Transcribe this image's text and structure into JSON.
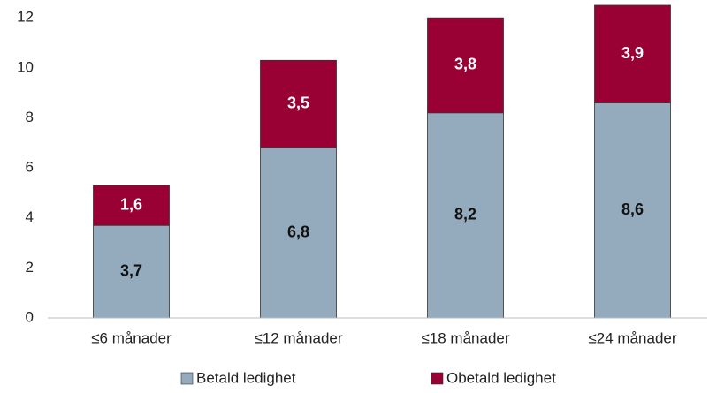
{
  "chart_data": {
    "type": "stacked_bar",
    "categories": [
      "≤6 månader",
      "≤12 månader",
      "≤18 månader",
      "≤24 månader"
    ],
    "series": [
      {
        "name": "Betald ledighet",
        "color": "#94abbd",
        "values": [
          3.7,
          6.8,
          8.2,
          8.6
        ],
        "value_labels": [
          "3,7",
          "6,8",
          "8,2",
          "8,6"
        ]
      },
      {
        "name": "Obetald ledighet",
        "color": "#990033",
        "values": [
          1.6,
          3.5,
          3.8,
          3.9
        ],
        "value_labels": [
          "1,6",
          "3,5",
          "3,8",
          "3,9"
        ]
      }
    ],
    "ylim": [
      0,
      12.5
    ],
    "yticks": [
      0,
      2,
      4,
      6,
      8,
      10,
      12
    ],
    "grid": false,
    "legend": "bottom"
  }
}
